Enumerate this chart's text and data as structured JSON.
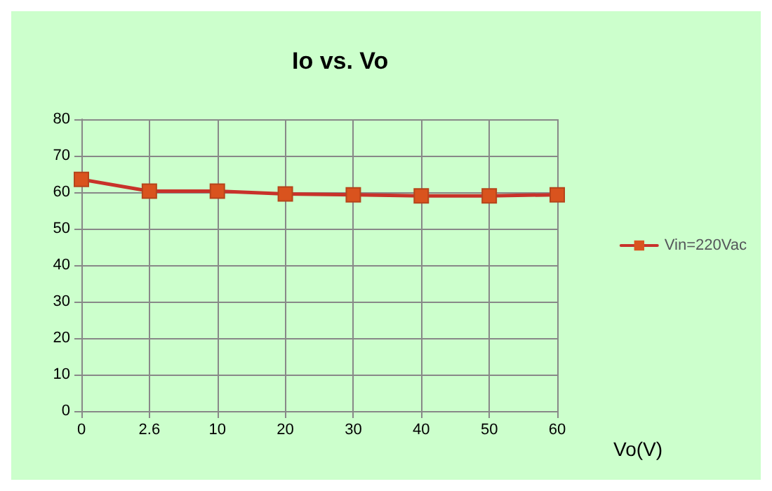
{
  "chart_data": {
    "type": "line",
    "title": "Io vs. Vo",
    "xlabel": "Vo(V)",
    "categories": [
      "0",
      "2.6",
      "10",
      "20",
      "30",
      "40",
      "50",
      "60"
    ],
    "series": [
      {
        "name": "Vin=220Vac",
        "color": "#d9531e",
        "values": [
          63.5,
          60.3,
          60.3,
          59.5,
          59.3,
          59.0,
          59.0,
          59.3
        ]
      }
    ],
    "ylim": [
      0,
      80
    ],
    "yticks": [
      0,
      10,
      20,
      30,
      40,
      50,
      60,
      70,
      80
    ],
    "grid": true,
    "legend": "right",
    "marker": "square",
    "line_style": "solid"
  }
}
